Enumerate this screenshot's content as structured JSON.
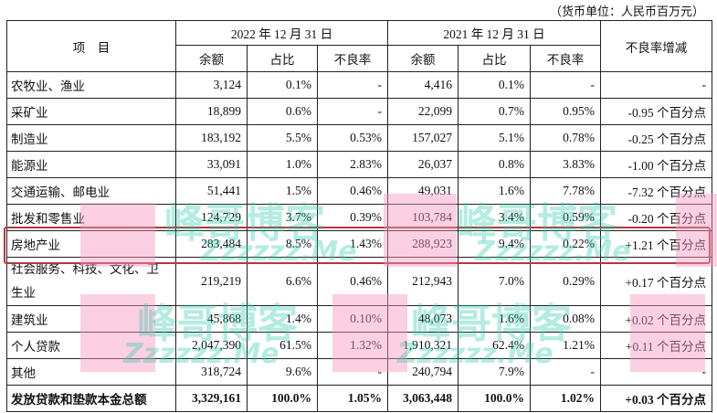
{
  "unit_note": "（货币单位：人民币百万元）",
  "header": {
    "item": "项　目",
    "year_2022": "2022 年 12 月 31 日",
    "year_2021": "2021 年 12 月 31 日",
    "npl_change": "不良率增减",
    "balance": "余额",
    "share": "占比",
    "npl_ratio": "不良率"
  },
  "rows": [
    {
      "item": "农牧业、渔业",
      "b22": "3,124",
      "s22": "0.1%",
      "n22": "-",
      "b21": "4,416",
      "s21": "0.1%",
      "n21": "-",
      "chg": "-"
    },
    {
      "item": "采矿业",
      "b22": "18,899",
      "s22": "0.6%",
      "n22": "-",
      "b21": "22,099",
      "s21": "0.7%",
      "n21": "0.95%",
      "chg": "-0.95 个百分点"
    },
    {
      "item": "制造业",
      "b22": "183,192",
      "s22": "5.5%",
      "n22": "0.53%",
      "b21": "157,027",
      "s21": "5.1%",
      "n21": "0.78%",
      "chg": "-0.25 个百分点"
    },
    {
      "item": "能源业",
      "b22": "33,091",
      "s22": "1.0%",
      "n22": "2.83%",
      "b21": "26,037",
      "s21": "0.8%",
      "n21": "3.83%",
      "chg": "-1.00 个百分点"
    },
    {
      "item": "交通运输、邮电业",
      "b22": "51,441",
      "s22": "1.5%",
      "n22": "0.46%",
      "b21": "49,031",
      "s21": "1.6%",
      "n21": "7.78%",
      "chg": "-7.32 个百分点"
    },
    {
      "item": "批发和零售业",
      "b22": "124,729",
      "s22": "3.7%",
      "n22": "0.39%",
      "b21": "103,784",
      "s21": "3.4%",
      "n21": "0.59%",
      "chg": "-0.20 个百分点"
    },
    {
      "item": "房地产业",
      "b22": "283,484",
      "s22": "8.5%",
      "n22": "1.43%",
      "b21": "288,923",
      "s21": "9.4%",
      "n21": "0.22%",
      "chg": "+1.21 个百分点"
    },
    {
      "item": "社会服务、科技、文化、卫生业",
      "b22": "219,219",
      "s22": "6.6%",
      "n22": "0.46%",
      "b21": "212,943",
      "s21": "7.0%",
      "n21": "0.29%",
      "chg": "+0.17 个百分点"
    },
    {
      "item": "建筑业",
      "b22": "45,868",
      "s22": "1.4%",
      "n22": "0.10%",
      "b21": "48,073",
      "s21": "1.6%",
      "n21": "0.08%",
      "chg": "+0.02 个百分点"
    },
    {
      "item": "个人贷款",
      "b22": "2,047,390",
      "s22": "61.5%",
      "n22": "1.32%",
      "b21": "1,910,321",
      "s21": "62.4%",
      "n21": "1.21%",
      "chg": "+0.11 个百分点"
    },
    {
      "item": "其他",
      "b22": "318,724",
      "s22": "9.6%",
      "n22": "-",
      "b21": "240,794",
      "s21": "7.9%",
      "n21": "-",
      "chg": "-"
    },
    {
      "item": "发放贷款和垫款本金总额",
      "b22": "3,329,161",
      "s22": "100.0%",
      "n22": "1.05%",
      "b21": "3,063,448",
      "s21": "100.0%",
      "n21": "1.02%",
      "chg": "+0.03 个百分点"
    }
  ],
  "watermark": {
    "brand": "峰哥博客",
    "site": "Zzzzzz.Me",
    "letter": "F"
  },
  "colors": {
    "highlight": "#b03a3a"
  }
}
